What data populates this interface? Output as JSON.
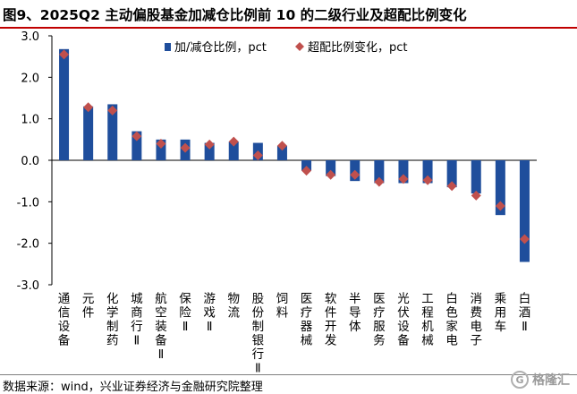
{
  "header": {
    "title": "图9、2025Q2 主动偏股基金加减仓比例前 10 的二级行业及超配比例变化"
  },
  "footer": {
    "source": "数据来源：wind，兴业证券经济与金融研究院整理",
    "watermark": "格隆汇"
  },
  "chart_data": {
    "type": "bar",
    "categories": [
      "通信设备",
      "元件",
      "化学制药",
      "城商行Ⅱ",
      "航空装备Ⅱ",
      "保险Ⅱ",
      "游戏Ⅱ",
      "物流",
      "股份制银行Ⅱ",
      "饲料",
      "医疗器械",
      "软件开发",
      "半导体",
      "医疗服务",
      "光伏设备",
      "工程机械",
      "白色家电",
      "消费电子",
      "乘用车",
      "白酒Ⅱ"
    ],
    "series": [
      {
        "name": "加/减仓比例，pct",
        "type": "bar",
        "color": "#1f4e9c",
        "values": [
          2.68,
          1.3,
          1.35,
          0.7,
          0.5,
          0.5,
          0.42,
          0.45,
          0.42,
          0.35,
          -0.25,
          -0.38,
          -0.5,
          -0.55,
          -0.55,
          -0.55,
          -0.65,
          -0.8,
          -1.32,
          -2.45
        ]
      },
      {
        "name": "超配比例变化，pct",
        "type": "scatter",
        "color": "#c0504d",
        "values": [
          2.55,
          1.28,
          1.2,
          0.58,
          0.4,
          0.3,
          0.38,
          0.45,
          0.12,
          0.35,
          -0.25,
          -0.35,
          -0.35,
          -0.52,
          -0.45,
          -0.48,
          -0.62,
          -0.85,
          -1.1,
          -1.9
        ]
      }
    ],
    "ylim": [
      -3.0,
      3.0
    ],
    "yticks": [
      "3.0",
      "2.0",
      "1.0",
      "0.0",
      "-1.0",
      "-2.0",
      "-3.0"
    ],
    "xlabel": "",
    "ylabel": "",
    "legend_position": "top-center"
  }
}
